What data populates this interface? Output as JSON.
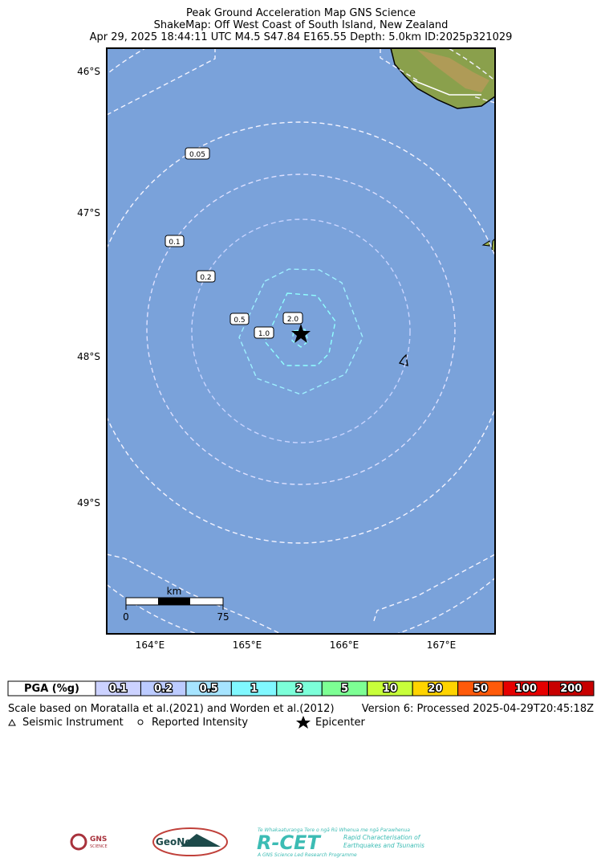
{
  "title": {
    "line1": "Peak Ground Acceleration Map GNS Science",
    "line2": "ShakeMap: Off West Coast of South Island, New Zealand",
    "line3": "Apr 29, 2025 18:44:11 UTC M4.5 S47.84 E165.55 Depth: 5.0km ID:2025p321029"
  },
  "map": {
    "lat_labels": [
      "46°S",
      "47°S",
      "48°S",
      "49°S"
    ],
    "lon_labels": [
      "164°E",
      "165°E",
      "166°E",
      "167°E"
    ],
    "contour_labels": [
      "0.05",
      "0.1",
      "0.2",
      "0.5",
      "1.0",
      "2.0"
    ],
    "scale_bar": {
      "unit": "km",
      "start": "0",
      "end": "75"
    }
  },
  "legend": {
    "title": "PGA (%g)",
    "title_color": "#ffffff",
    "items": [
      {
        "label": "0.1",
        "color": "#ccd2ff"
      },
      {
        "label": "0.2",
        "color": "#bccbff"
      },
      {
        "label": "0.5",
        "color": "#a6e4ff"
      },
      {
        "label": "1",
        "color": "#80f8ff"
      },
      {
        "label": "2",
        "color": "#7cffd9"
      },
      {
        "label": "5",
        "color": "#7dff94"
      },
      {
        "label": "10",
        "color": "#c8ff3a"
      },
      {
        "label": "20",
        "color": "#ffd400"
      },
      {
        "label": "50",
        "color": "#ff5a0a"
      },
      {
        "label": "100",
        "color": "#e60000"
      },
      {
        "label": "200",
        "color": "#c80000"
      }
    ]
  },
  "footer": {
    "scale_note": "Scale based on Moratalla et al.(2021) and Worden et al.(2012)",
    "version": "Version 6: Processed 2025-04-29T20:45:18Z",
    "seismic_instrument": "Seismic Instrument",
    "reported_intensity": "Reported Intensity",
    "epicenter": "Epicenter"
  },
  "logos": {
    "gns": "GNS",
    "gns_sub": "SCIENCE",
    "geonet": "GeoNet",
    "rcet": "R-CET",
    "rcet_maori": "Te Whakaaturanga Tere o ngā Rū Whenua me ngā Parawhenua",
    "rcet_line1": "Rapid Characterisation of",
    "rcet_line2": "Earthquakes and Tsunamis",
    "rcet_foot": "A GNS Science Led Research Programme"
  }
}
